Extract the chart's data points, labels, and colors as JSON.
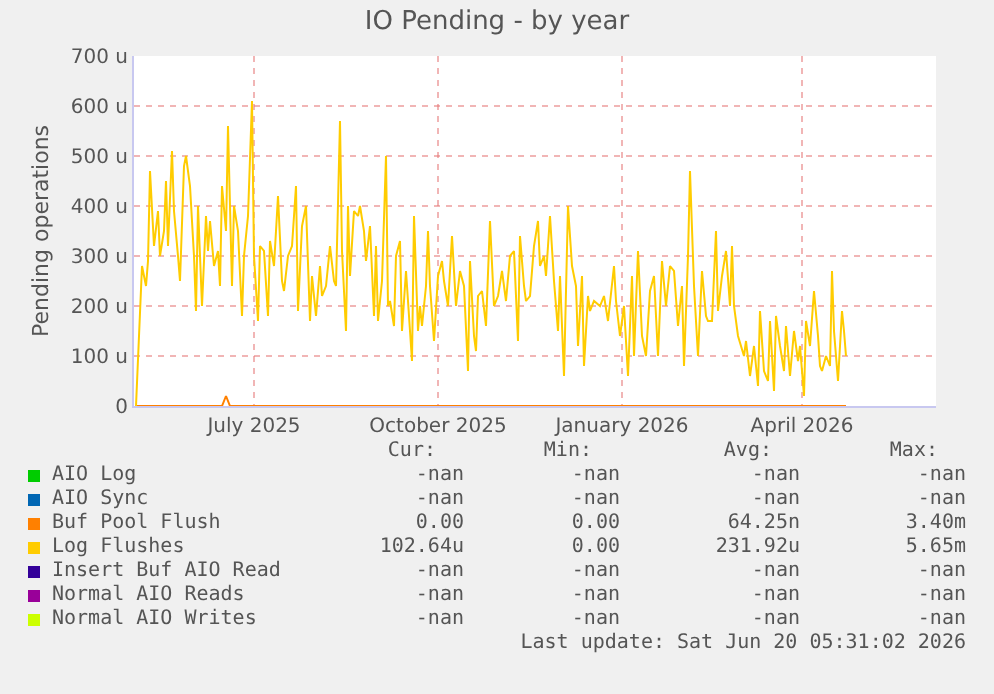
{
  "chart_data": {
    "type": "line",
    "title": "IO Pending - by year",
    "ylabel": "Pending operations",
    "xlim": [
      "2025-05-02",
      "2026-06-07"
    ],
    "xticks": [
      {
        "value": "2025-07-01",
        "label": "July 2025"
      },
      {
        "value": "2025-10-01",
        "label": "October 2025"
      },
      {
        "value": "2026-01-01",
        "label": "January 2026"
      },
      {
        "value": "2026-04-01",
        "label": "April 2026"
      }
    ],
    "ylim": [
      0,
      700
    ],
    "yticks": [
      0,
      {
        "value": 100,
        "label": "100 u"
      },
      {
        "value": 200,
        "label": "200 u"
      },
      {
        "value": 300,
        "label": "300 u"
      },
      {
        "value": 400,
        "label": "400 u"
      },
      {
        "value": 500,
        "label": "500 u"
      },
      {
        "value": 600,
        "label": "600 u"
      },
      {
        "value": 700,
        "label": "700 u"
      }
    ],
    "grid": true,
    "legend": "bottom",
    "marker": "none",
    "line_style": "solid",
    "series": [
      {
        "name": "AIO Log",
        "color": "#00cc00"
      },
      {
        "name": "AIO Sync",
        "color": "#0066b3"
      },
      {
        "name": "Buf Pool Flush",
        "color": "#ff8000",
        "x": [
          "2025-05-03",
          "2025-06-15",
          "2025-06-17",
          "2025-06-19",
          "2026-04-23"
        ],
        "values": [
          0,
          0,
          20,
          0,
          0
        ]
      },
      {
        "name": "Log Flushes",
        "color": "#ffcc00",
        "x": [
          "2025-05-03",
          "2025-05-06",
          "2025-05-08",
          "2025-05-09",
          "2025-05-10",
          "2025-05-12",
          "2025-05-14",
          "2025-05-15",
          "2025-05-17",
          "2025-05-18",
          "2025-05-19",
          "2025-05-21",
          "2025-05-22",
          "2025-05-24",
          "2025-05-25",
          "2025-05-27",
          "2025-05-28",
          "2025-05-30",
          "2025-06-01",
          "2025-06-02",
          "2025-06-03",
          "2025-06-05",
          "2025-06-07",
          "2025-06-08",
          "2025-06-09",
          "2025-06-11",
          "2025-06-13",
          "2025-06-14",
          "2025-06-15",
          "2025-06-17",
          "2025-06-18",
          "2025-06-20",
          "2025-06-21",
          "2025-06-23",
          "2025-06-25",
          "2025-06-26",
          "2025-06-28",
          "2025-06-30",
          "2025-07-01",
          "2025-07-03",
          "2025-07-04",
          "2025-07-06",
          "2025-07-08",
          "2025-07-09",
          "2025-07-11",
          "2025-07-13",
          "2025-07-15",
          "2025-07-16",
          "2025-07-18",
          "2025-07-20",
          "2025-07-22",
          "2025-07-23",
          "2025-07-25",
          "2025-07-27",
          "2025-07-29",
          "2025-07-30",
          "2025-08-01",
          "2025-08-03",
          "2025-08-04",
          "2025-08-06",
          "2025-08-08",
          "2025-08-10",
          "2025-08-11",
          "2025-08-13",
          "2025-08-14",
          "2025-08-16",
          "2025-08-17",
          "2025-08-18",
          "2025-08-20",
          "2025-08-22",
          "2025-08-23",
          "2025-08-25",
          "2025-08-26",
          "2025-08-28",
          "2025-08-30",
          "2025-08-31",
          "2025-09-01",
          "2025-09-03",
          "2025-09-05",
          "2025-09-06",
          "2025-09-07",
          "2025-09-09",
          "2025-09-10",
          "2025-09-12",
          "2025-09-13",
          "2025-09-15",
          "2025-09-16",
          "2025-09-18",
          "2025-09-19",
          "2025-09-21",
          "2025-09-22",
          "2025-09-23",
          "2025-09-25",
          "2025-09-26",
          "2025-09-27",
          "2025-09-29",
          "2025-10-01",
          "2025-10-03",
          "2025-10-04",
          "2025-10-06",
          "2025-10-08",
          "2025-10-10",
          "2025-10-12",
          "2025-10-14",
          "2025-10-16",
          "2025-10-17",
          "2025-10-19",
          "2025-10-20",
          "2025-10-21",
          "2025-10-23",
          "2025-10-25",
          "2025-10-27",
          "2025-10-29",
          "2025-10-31",
          "2025-11-02",
          "2025-11-04",
          "2025-11-06",
          "2025-11-08",
          "2025-11-10",
          "2025-11-11",
          "2025-11-13",
          "2025-11-14",
          "2025-11-16",
          "2025-11-18",
          "2025-11-20",
          "2025-11-21",
          "2025-11-23",
          "2025-11-24",
          "2025-11-26",
          "2025-11-28",
          "2025-11-30",
          "2025-12-01",
          "2025-12-03",
          "2025-12-05",
          "2025-12-07",
          "2025-12-09",
          "2025-12-10",
          "2025-12-12",
          "2025-12-13",
          "2025-12-15",
          "2025-12-16",
          "2025-12-18",
          "2025-12-21",
          "2025-12-23",
          "2025-12-25",
          "2025-12-28",
          "2025-12-29",
          "2025-12-31",
          "2026-01-02",
          "2026-01-04",
          "2026-01-06",
          "2026-01-07",
          "2026-01-09",
          "2026-01-11",
          "2026-01-13",
          "2026-01-15",
          "2026-01-17",
          "2026-01-19",
          "2026-01-21",
          "2026-01-23",
          "2026-01-25",
          "2026-01-27",
          "2026-01-29",
          "2026-01-31",
          "2026-02-01",
          "2026-02-03",
          "2026-02-04",
          "2026-02-06",
          "2026-02-08",
          "2026-02-10",
          "2026-02-12",
          "2026-02-13",
          "2026-02-15",
          "2026-02-17",
          "2026-02-18",
          "2026-02-20",
          "2026-02-22",
          "2026-02-24",
          "2026-02-25",
          "2026-02-26",
          "2026-02-28",
          "2026-03-03",
          "2026-03-04",
          "2026-03-06",
          "2026-03-08",
          "2026-03-10",
          "2026-03-11",
          "2026-03-13",
          "2026-03-15",
          "2026-03-16",
          "2026-03-18",
          "2026-03-19",
          "2026-03-21",
          "2026-03-23",
          "2026-03-24",
          "2026-03-26",
          "2026-03-28",
          "2026-03-30",
          "2026-03-31",
          "2026-04-02",
          "2026-04-03",
          "2026-04-05",
          "2026-04-07",
          "2026-04-09",
          "2026-04-10",
          "2026-04-11",
          "2026-04-13",
          "2026-04-15",
          "2026-04-16",
          "2026-04-17",
          "2026-04-19",
          "2026-04-21",
          "2026-04-22",
          "2026-04-23"
        ],
        "values": [
          0,
          280,
          240,
          290,
          470,
          320,
          390,
          300,
          350,
          450,
          320,
          510,
          390,
          300,
          250,
          480,
          500,
          440,
          300,
          190,
          400,
          200,
          380,
          310,
          370,
          280,
          310,
          240,
          440,
          350,
          560,
          240,
          400,
          350,
          180,
          300,
          380,
          610,
          300,
          170,
          320,
          310,
          180,
          330,
          280,
          420,
          250,
          230,
          300,
          320,
          440,
          190,
          360,
          400,
          170,
          260,
          180,
          280,
          220,
          240,
          320,
          250,
          240,
          570,
          310,
          150,
          400,
          260,
          390,
          380,
          400,
          350,
          290,
          360,
          180,
          320,
          170,
          250,
          500,
          200,
          210,
          160,
          300,
          330,
          150,
          270,
          210,
          90,
          380,
          150,
          200,
          160,
          240,
          350,
          240,
          130,
          260,
          290,
          250,
          200,
          340,
          200,
          270,
          240,
          70,
          290,
          140,
          110,
          220,
          230,
          160,
          370,
          200,
          220,
          270,
          210,
          300,
          310,
          130,
          340,
          240,
          210,
          220,
          320,
          370,
          280,
          300,
          260,
          380,
          250,
          150,
          260,
          60,
          400,
          280,
          240,
          120,
          260,
          80,
          220,
          190,
          210,
          200,
          220,
          170,
          280,
          210,
          140,
          200,
          60,
          260,
          100,
          310,
          140,
          100,
          230,
          260,
          100,
          290,
          200,
          280,
          270,
          160,
          240,
          80,
          300,
          470,
          240,
          100,
          270,
          180,
          170,
          170,
          350,
          190,
          260,
          310,
          200,
          320,
          200,
          140,
          100,
          130,
          60,
          120,
          40,
          190,
          70,
          50,
          170,
          30,
          180,
          120,
          70,
          160,
          60,
          150,
          90,
          120,
          20,
          170,
          120,
          230,
          140,
          80,
          70,
          100,
          80,
          270,
          150,
          50,
          190,
          150,
          100
        ]
      },
      {
        "name": "Insert Buf AIO Read",
        "color": "#330099"
      },
      {
        "name": "Normal AIO Reads",
        "color": "#990099"
      },
      {
        "name": "Normal AIO Writes",
        "color": "#ccff00"
      }
    ],
    "annotations": [
      "Cur:",
      "Min:",
      "Avg:",
      "Max:",
      "-nan",
      "-nan",
      "-nan",
      "-nan",
      "-nan",
      "-nan",
      "-nan",
      "-nan",
      "0.00",
      "0.00",
      "64.25n",
      "3.40m",
      "102.64u",
      "0.00",
      "231.92u",
      "5.65m",
      "-nan",
      "-nan",
      "-nan",
      "-nan",
      "-nan",
      "-nan",
      "-nan",
      "-nan",
      "-nan",
      "-nan",
      "-nan",
      "-nan",
      "Last update: Sat Jun 20 05:31:02 2026"
    ]
  }
}
